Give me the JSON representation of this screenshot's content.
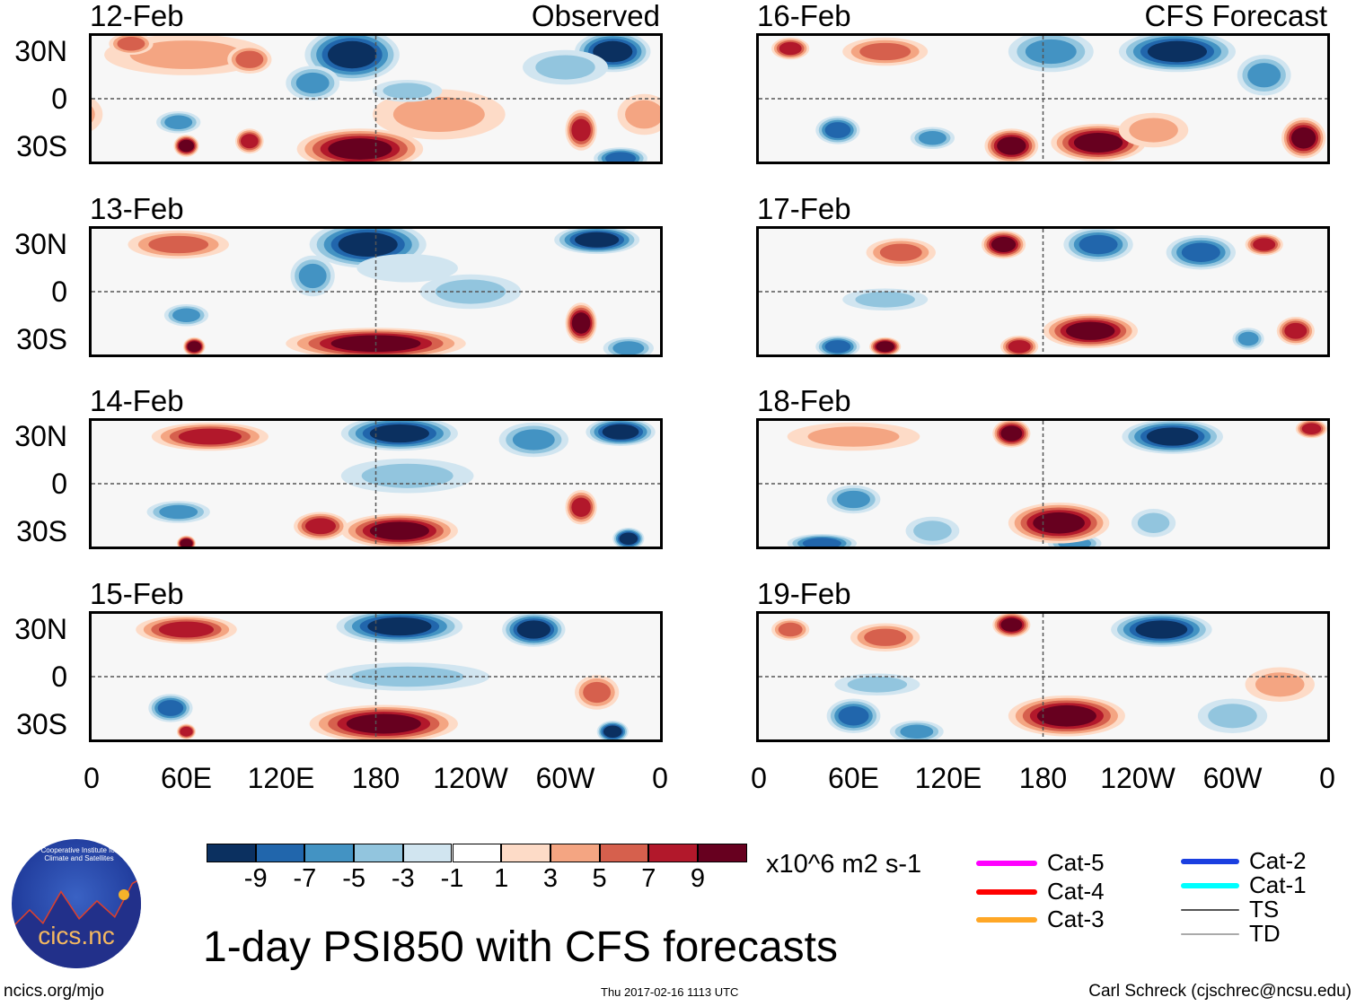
{
  "panels": [
    {
      "date": "12-Feb",
      "tag": "Observed"
    },
    {
      "date": "13-Feb"
    },
    {
      "date": "14-Feb"
    },
    {
      "date": "15-Feb"
    },
    {
      "date": "16-Feb",
      "tag": "CFS Forecast"
    },
    {
      "date": "17-Feb"
    },
    {
      "date": "18-Feb"
    },
    {
      "date": "19-Feb"
    }
  ],
  "lat_labels": [
    "30N",
    "0",
    "30S"
  ],
  "lon_labels": [
    "0",
    "60E",
    "120E",
    "180",
    "120W",
    "60W",
    "0"
  ],
  "colorbar": {
    "labels": [
      "-9",
      "-7",
      "-5",
      "-3",
      "-1",
      "1",
      "3",
      "5",
      "7",
      "9"
    ],
    "colors": [
      "#0b3060",
      "#2166ac",
      "#4393c3",
      "#92c5de",
      "#d1e5f0",
      "#ffffff",
      "#fddbc7",
      "#f4a582",
      "#d6604d",
      "#b2182b",
      "#67001f"
    ],
    "units": "x10^6 m2 s-1"
  },
  "storm_legend": [
    {
      "label": "Cat-5",
      "color": "#ff00ff"
    },
    {
      "label": "Cat-4",
      "color": "#ff0000"
    },
    {
      "label": "Cat-3",
      "color": "#ffa726"
    },
    {
      "label": "Cat-2",
      "color": "#1a3fe0"
    },
    {
      "label": "Cat-1",
      "color": "#00ffff"
    },
    {
      "label": "TS",
      "color": "#555555"
    },
    {
      "label": "TD",
      "color": "#aaaaaa"
    }
  ],
  "title": "1-day PSI850 with CFS forecasts",
  "logo": {
    "name": "cics.nc",
    "ring_text": "Cooperative Institute for Climate and Satellites"
  },
  "footer": {
    "left": "ncics.org/mjo",
    "center": "Thu 2017-02-16 1113 UTC",
    "right": "Carl Schreck (cjschrec@ncsu.edu)"
  }
}
